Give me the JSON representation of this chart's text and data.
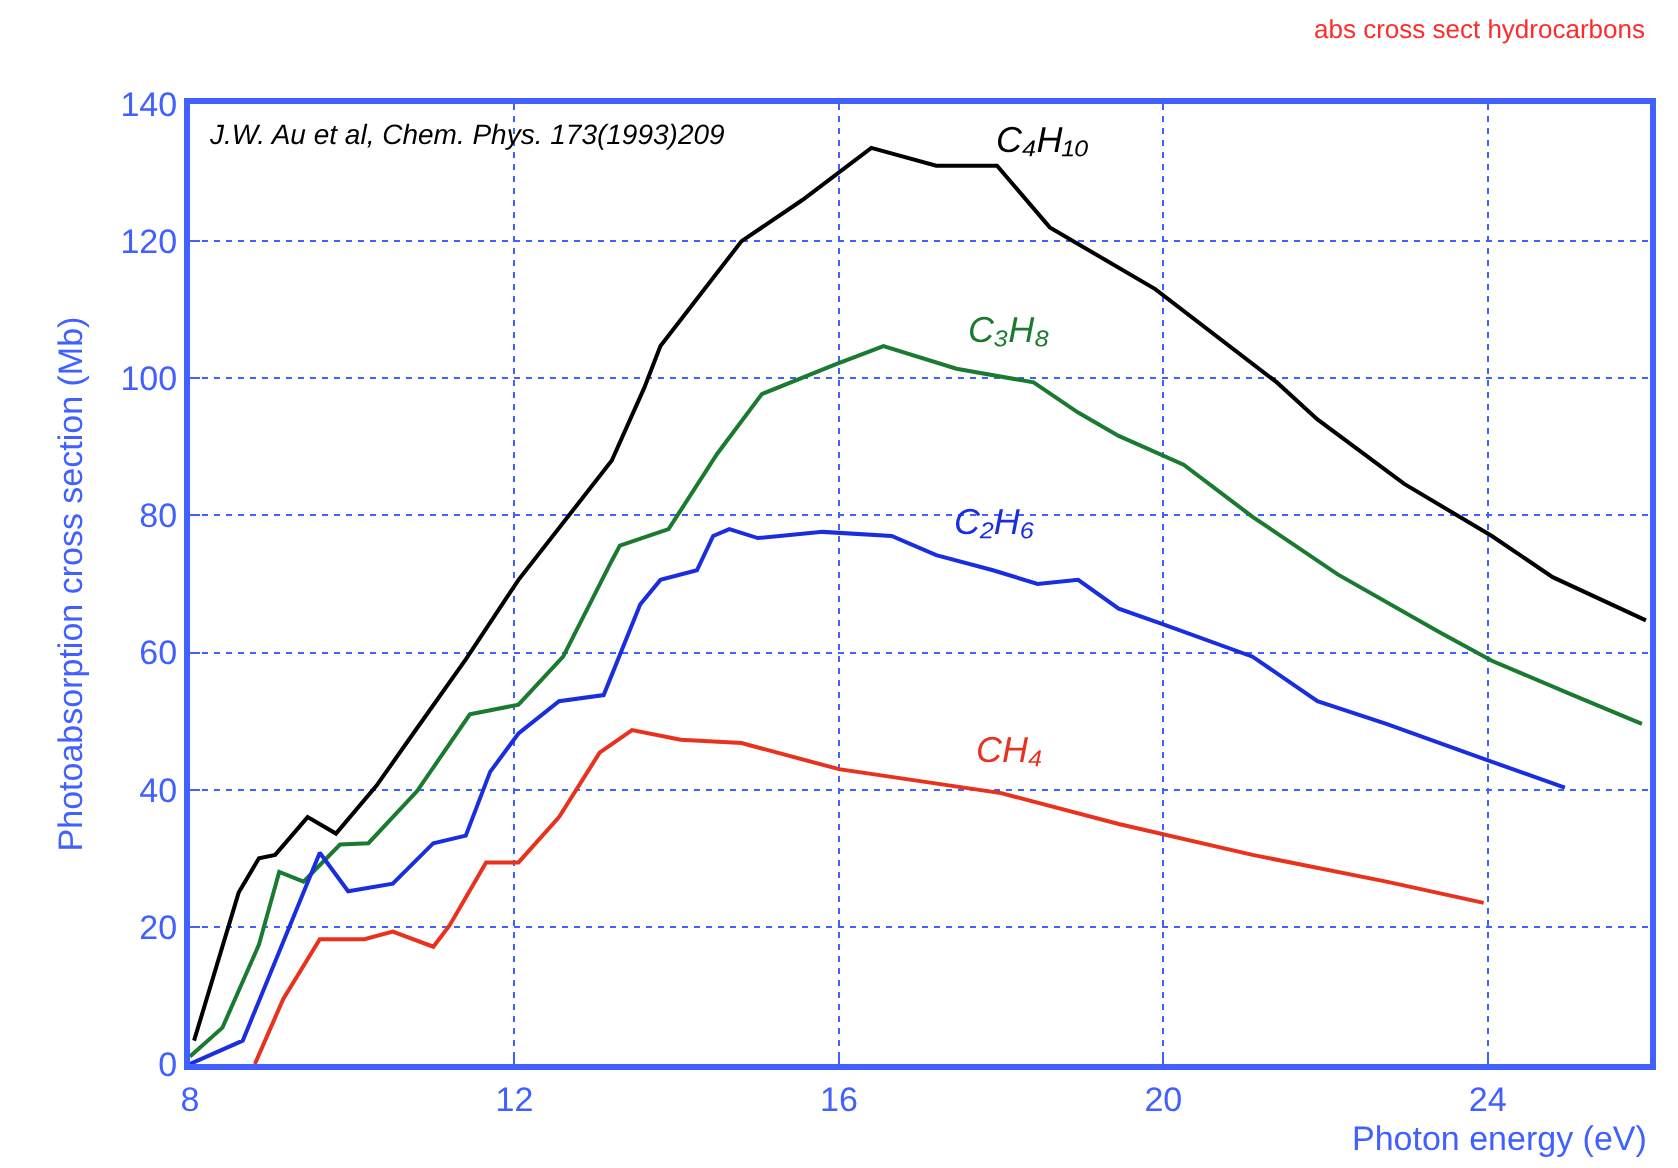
{
  "chart_data": {
    "type": "line",
    "title": "abs cross sect hydrocarbons",
    "xlabel": "Photon energy (eV)",
    "ylabel": "Photoabsorption cross section (Mb)",
    "xlim": [
      8,
      26
    ],
    "xticks": [
      8,
      12,
      16,
      20,
      24
    ],
    "ylim": [
      0,
      140
    ],
    "yticks": [
      0,
      20,
      40,
      60,
      80,
      100,
      120,
      140
    ],
    "grid": true,
    "legend": false,
    "marker": "none",
    "line_style": "solid",
    "series": [
      {
        "name": "C₄H₁₀",
        "color": "#000000",
        "x": [
          8.05,
          8.6,
          8.85,
          9.05,
          9.45,
          9.8,
          10.3,
          10.8,
          11.4,
          12.05,
          13.2,
          13.6,
          13.8,
          14.8,
          15.55,
          16.4,
          17.2,
          17.95,
          18.6,
          19.9,
          21.4,
          21.9,
          22.97,
          24.05,
          24.8,
          25.95
        ],
        "values": [
          3.4,
          25,
          30,
          30.5,
          36,
          33.6,
          40.6,
          49,
          59,
          70.6,
          88,
          98.6,
          104.7,
          120,
          126,
          133.6,
          131,
          131,
          122,
          113,
          99.4,
          94,
          84.6,
          77,
          71,
          64.7
        ]
      },
      {
        "name": "C₃H₈",
        "color": "#1a7a30",
        "x": [
          8,
          8.4,
          8.85,
          9.1,
          9.4,
          9.85,
          10.2,
          10.8,
          11.45,
          12.05,
          12.6,
          13.2,
          13.3,
          13.9,
          14.5,
          15.05,
          15.95,
          16.55,
          17.45,
          18.4,
          18.95,
          19.45,
          20.25,
          21.1,
          22.15,
          23.4,
          24.05,
          25.05,
          25.9
        ],
        "values": [
          1.1,
          5.3,
          17.4,
          28,
          26.6,
          32,
          32.2,
          39.8,
          51,
          52.4,
          59.4,
          73.4,
          75.6,
          78,
          89,
          97.7,
          102,
          104.7,
          101.4,
          99.4,
          95,
          91.6,
          87.4,
          79.8,
          71.4,
          63,
          58.8,
          53.8,
          49.6
        ]
      },
      {
        "name": "C₂H₆",
        "color": "#1a2ee0",
        "x": [
          8,
          8.65,
          9.6,
          9.95,
          10.5,
          11,
          11.4,
          11.7,
          12.05,
          12.55,
          13.1,
          13.55,
          13.8,
          14.25,
          14.45,
          14.65,
          15,
          15.8,
          16.65,
          17.2,
          17.9,
          18.45,
          18.95,
          19.45,
          20,
          21.1,
          21.9,
          22.75,
          23.95,
          24.95
        ],
        "values": [
          0,
          3.4,
          30.8,
          25.2,
          26.3,
          32.2,
          33.3,
          42.6,
          48.2,
          52.9,
          53.8,
          67,
          70.6,
          72,
          77,
          78,
          76.7,
          77.6,
          77,
          74.2,
          72,
          70,
          70.6,
          66.4,
          64.1,
          59.4,
          52.9,
          49.6,
          44.5,
          40.3
        ]
      },
      {
        "name": "CH₄",
        "color": "#e8321e",
        "x": [
          8.8,
          9.15,
          9.6,
          10.15,
          10.5,
          11,
          11.2,
          11.65,
          12.05,
          12.55,
          13.05,
          13.45,
          14.05,
          14.8,
          16,
          18,
          19.45,
          21.1,
          22.75,
          23.95
        ],
        "values": [
          0,
          9.5,
          18.2,
          18.2,
          19.3,
          17.1,
          20.2,
          29.4,
          29.4,
          36,
          45.4,
          48.7,
          47.3,
          46.8,
          43,
          39.5,
          35,
          30.5,
          26.6,
          23.5
        ]
      }
    ],
    "annotations": [
      "J.W. Au et al, Chem. Phys. 173(1993)209"
    ]
  }
}
